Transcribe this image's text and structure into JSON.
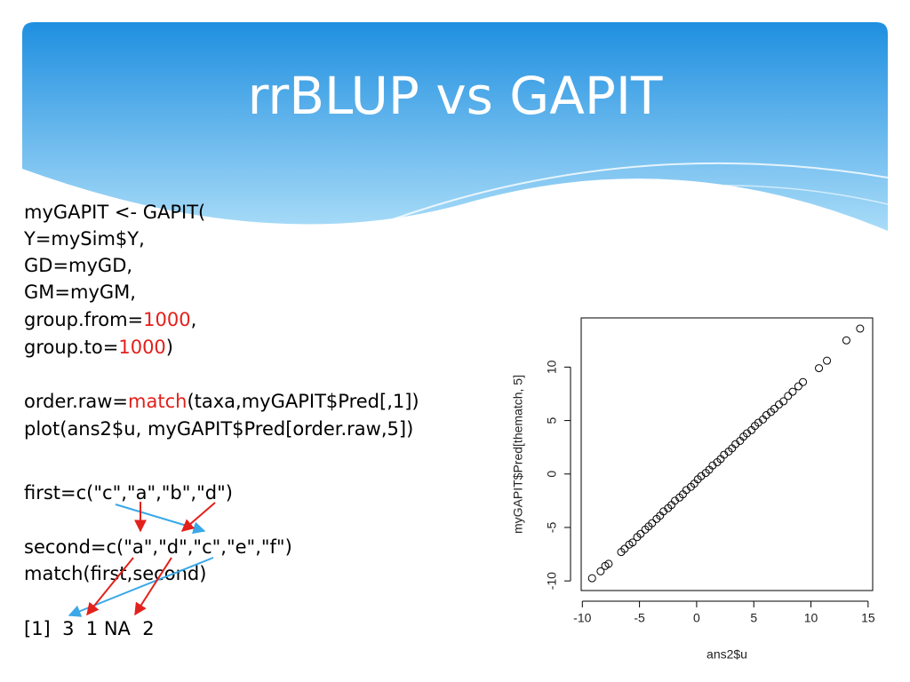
{
  "title": "rrBLUP vs GAPIT",
  "code": [
    [
      "myGAPIT <- GAPIT("
    ],
    [
      "Y=mySim$Y,"
    ],
    [
      "GD=myGD,"
    ],
    [
      "GM=myGM,"
    ],
    [
      "group.from=",
      {
        "text": "1000",
        "color": "#e3201b"
      },
      ","
    ],
    [
      "group.to=",
      {
        "text": "1000",
        "color": "#e3201b"
      },
      ")"
    ],
    [
      "order.raw=",
      {
        "text": "match",
        "color": "#e3201b"
      },
      "(taxa,myGAPIT$Pred[,1])"
    ],
    [
      "plot(ans2$u, myGAPIT$Pred[order.raw,5])"
    ],
    [
      "first=c(\"c\",\"a\",\"b\",\"d\")"
    ],
    [
      "second=c(\"a\",\"d\",\"c\",\"e\",\"f\")"
    ],
    [
      "match(first,second)"
    ],
    [
      "[1]  3  1 NA  2"
    ]
  ],
  "chart_data": {
    "type": "scatter",
    "xlabel": "ans2$u",
    "ylabel": "myGAPIT$Pred[thematch, 5]",
    "x": [
      -9.15,
      -8.4,
      -8.0,
      -7.7,
      -6.6,
      -6.3,
      -5.9,
      -5.6,
      -5.2,
      -4.9,
      -4.5,
      -4.2,
      -3.9,
      -3.5,
      -3.2,
      -2.9,
      -2.5,
      -2.2,
      -1.9,
      -1.5,
      -1.2,
      -0.9,
      -0.5,
      -0.2,
      0.1,
      0.4,
      0.8,
      1.1,
      1.4,
      1.8,
      2.1,
      2.4,
      2.8,
      3.1,
      3.4,
      3.8,
      4.1,
      4.4,
      4.8,
      5.1,
      5.4,
      5.8,
      6.1,
      6.5,
      6.8,
      7.2,
      7.6,
      8.0,
      8.4,
      8.9,
      9.3,
      10.7,
      11.4,
      13.1,
      14.3
    ],
    "values": [
      -9.75,
      -9.1,
      -8.6,
      -8.4,
      -7.3,
      -7.0,
      -6.6,
      -6.4,
      -5.9,
      -5.6,
      -5.2,
      -4.9,
      -4.6,
      -4.2,
      -3.9,
      -3.5,
      -3.2,
      -2.9,
      -2.5,
      -2.2,
      -1.9,
      -1.5,
      -1.2,
      -0.9,
      -0.5,
      -0.2,
      0.1,
      0.4,
      0.8,
      1.1,
      1.4,
      1.8,
      2.1,
      2.4,
      2.8,
      3.1,
      3.5,
      3.8,
      4.1,
      4.5,
      4.8,
      5.1,
      5.5,
      5.8,
      6.1,
      6.5,
      6.8,
      7.3,
      7.7,
      8.2,
      8.6,
      9.9,
      10.6,
      12.5,
      13.6
    ],
    "xlim": [
      -10.1,
      15.4
    ],
    "ylim": [
      -10.9,
      14.6
    ],
    "xticks": [
      -10,
      -5,
      0,
      5,
      10,
      15
    ],
    "yticks": [
      -10,
      -5,
      0,
      5,
      10
    ],
    "color": "#000000"
  }
}
